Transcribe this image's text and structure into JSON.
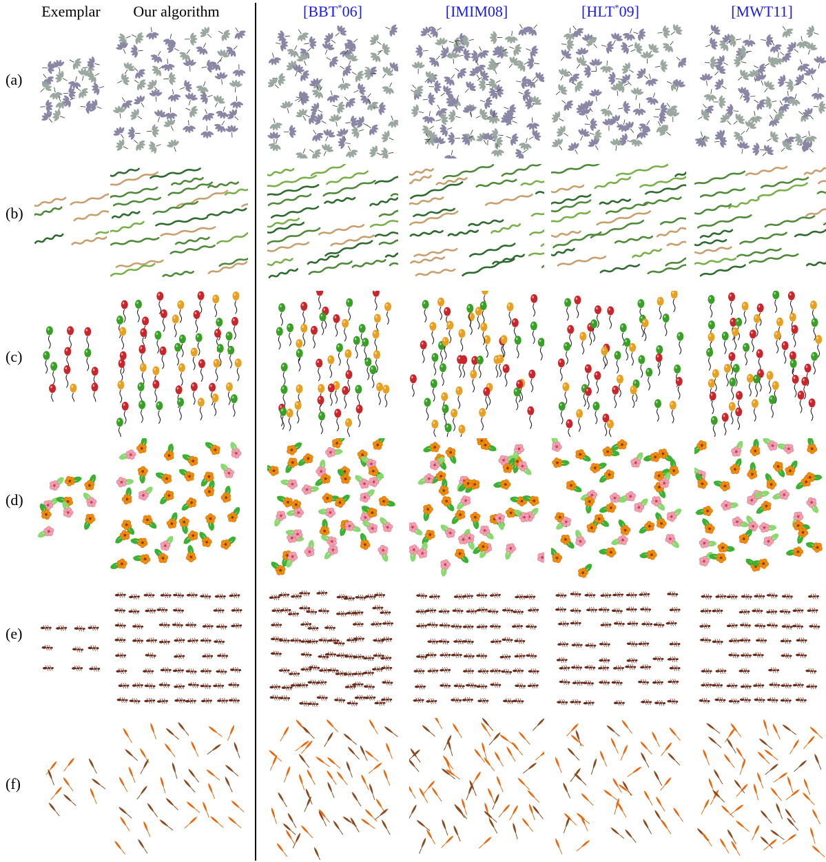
{
  "figure": {
    "columns": [
      {
        "id": "exemplar",
        "label": "Exemplar",
        "cite": false
      },
      {
        "id": "ours",
        "label": "Our algorithm",
        "cite": false
      },
      {
        "id": "bbt06",
        "label": "[BBT",
        "sup": "*",
        "label_tail": "06]",
        "cite": true
      },
      {
        "id": "imim08",
        "label": "[IMIM08]",
        "cite": true
      },
      {
        "id": "hlt09",
        "label": "[HLT",
        "sup": "*",
        "label_tail": "09]",
        "cite": true
      },
      {
        "id": "mwt11",
        "label": "[MWT11]",
        "cite": true
      }
    ],
    "rows": [
      {
        "id": "a",
        "label": "(a)",
        "pattern": "leaves"
      },
      {
        "id": "b",
        "label": "(b)",
        "pattern": "snakes"
      },
      {
        "id": "c",
        "label": "(c)",
        "pattern": "balloons"
      },
      {
        "id": "d",
        "label": "(d)",
        "pattern": "flowers"
      },
      {
        "id": "e",
        "label": "(e)",
        "pattern": "ants"
      },
      {
        "id": "f",
        "label": "(f)",
        "pattern": "feathers"
      }
    ],
    "colors": {
      "citation": "#1a1aee",
      "leaf_purple": "#8a86a6",
      "leaf_green": "#9aa8a0",
      "snake_green": "#4f8a3a",
      "snake_tan": "#c8a070",
      "balloon_red": "#c8262a",
      "balloon_green": "#38a024",
      "balloon_orange": "#e8a020",
      "flower_orange": "#f08c10",
      "flower_pink": "#f4a0b0",
      "leaf_bright_green": "#3cb030",
      "ant_brown": "#6a2a1a",
      "feather_orange": "#e86a10",
      "feather_brown": "#8a4a20"
    }
  }
}
